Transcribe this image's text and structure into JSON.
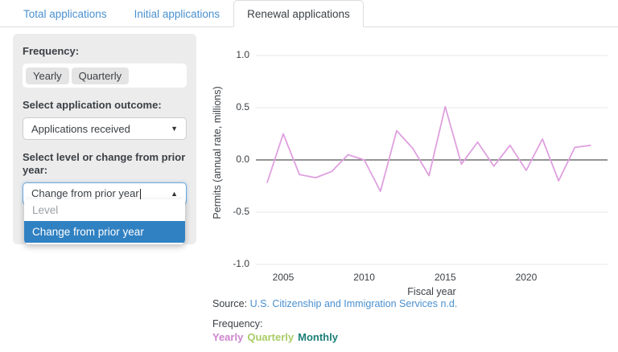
{
  "tabs": {
    "items": [
      {
        "label": "Total applications",
        "active": false
      },
      {
        "label": "Initial applications",
        "active": false
      },
      {
        "label": "Renewal applications",
        "active": true
      }
    ]
  },
  "sidebar": {
    "frequency_label": "Frequency:",
    "frequency_options": [
      "Yearly",
      "Quarterly"
    ],
    "outcome_label": "Select application outcome:",
    "outcome_value": "Applications received",
    "level_label": "Select level or change from prior year:",
    "level_value": "Change from prior year",
    "level_options": [
      {
        "label": "Level",
        "selected": false
      },
      {
        "label": "Change from prior year",
        "selected": true
      }
    ]
  },
  "chart_data": {
    "type": "line",
    "title": "",
    "xlabel": "Fiscal year",
    "ylabel": "Permits (annual rate, millions)",
    "series": [
      {
        "name": "Yearly",
        "x": [
          2004,
          2005,
          2006,
          2007,
          2008,
          2009,
          2010,
          2011,
          2012,
          2013,
          2014,
          2015,
          2016,
          2017,
          2018,
          2019,
          2020,
          2021,
          2022,
          2023,
          2024
        ],
        "values": [
          -0.22,
          0.25,
          -0.14,
          -0.17,
          -0.11,
          0.05,
          0.0,
          -0.3,
          0.28,
          0.11,
          -0.15,
          0.51,
          -0.04,
          0.17,
          -0.06,
          0.14,
          -0.1,
          0.2,
          -0.2,
          0.12,
          0.14
        ]
      }
    ],
    "x_ticks": [
      2005,
      2010,
      2015,
      2020
    ],
    "y_ticks": [
      1.0,
      0.5,
      0.0,
      -0.5,
      -1.0
    ],
    "xlim": [
      2003.3,
      2025.0
    ],
    "ylim": [
      -1.0,
      1.0
    ],
    "grid": "horizontal-only",
    "zero_line": true,
    "legend_position": "none",
    "line_color": "#dfa0df",
    "zero_line_color": "#555555",
    "grid_color": "#e7e7e7"
  },
  "footer": {
    "source_prefix": "Source: ",
    "source_link": "U.S. Citizenship and Immigration Services n.d.",
    "frequency_label": "Frequency:",
    "legend": [
      {
        "label": "Yearly",
        "color": "#cd85cd"
      },
      {
        "label": "Quarterly",
        "color": "#a9cc66"
      },
      {
        "label": "Monthly",
        "color": "#1b7f7a"
      }
    ]
  },
  "colors": {
    "accent_link": "#4a90cf",
    "selected_option_bg": "#3081c2",
    "panel_bg": "#ececec"
  }
}
